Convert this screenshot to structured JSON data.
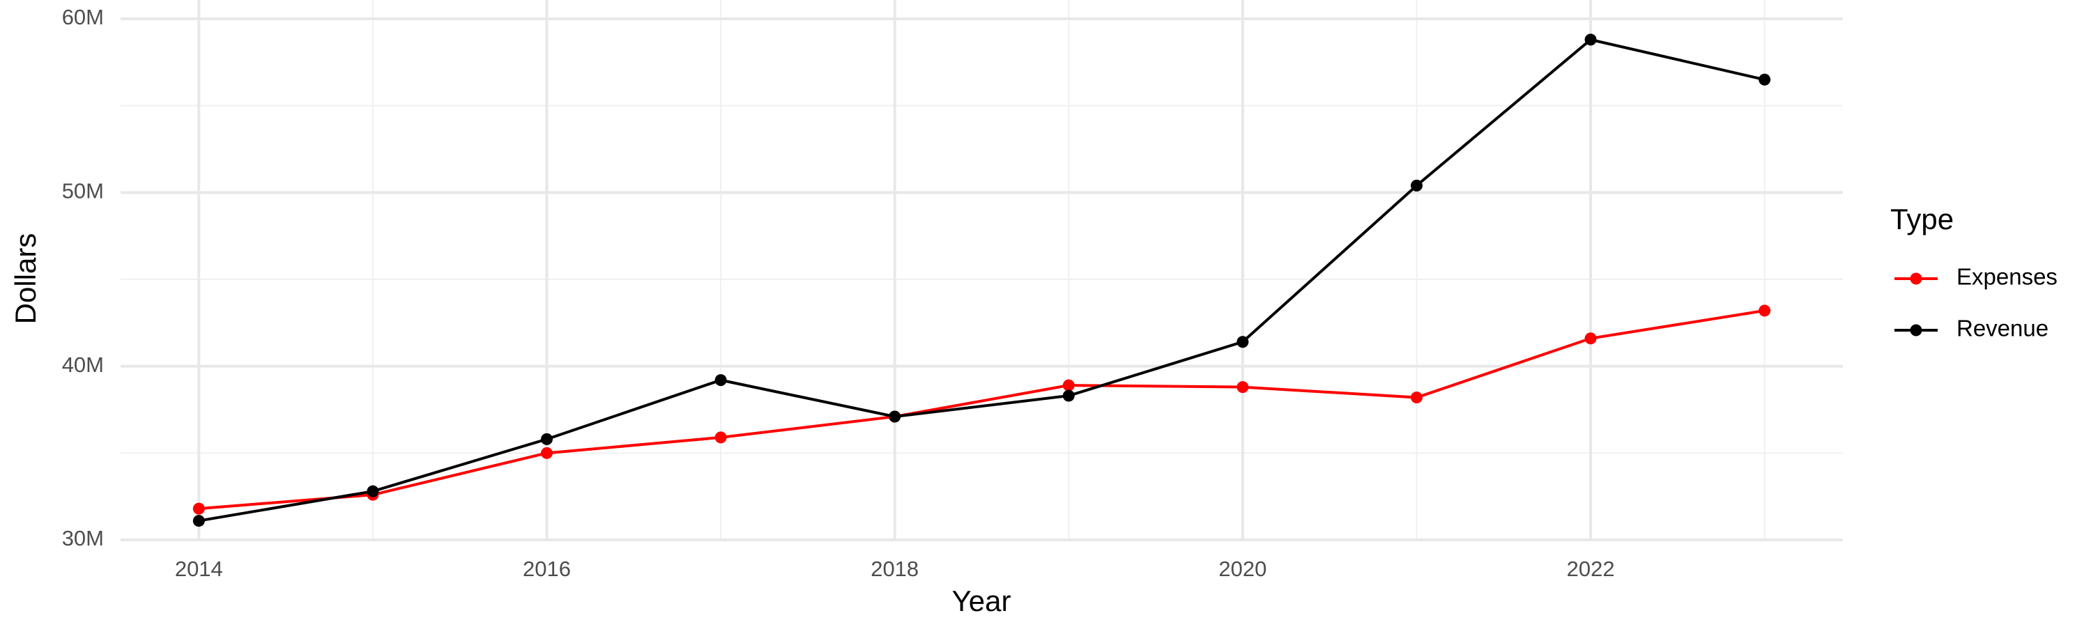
{
  "chart_data": {
    "type": "line",
    "x_label": "Year",
    "y_label": "Dollars",
    "legend_title": "Type",
    "x": [
      2014,
      2015,
      2016,
      2017,
      2018,
      2019,
      2020,
      2021,
      2022,
      2023
    ],
    "series": [
      {
        "name": "Expenses",
        "color": "#ff0000",
        "values": [
          31800000,
          32600000,
          35000000,
          35900000,
          37100000,
          38900000,
          38800000,
          38200000,
          41600000,
          43200000
        ]
      },
      {
        "name": "Revenue",
        "color": "#000000",
        "values": [
          31100000,
          32800000,
          35800000,
          39200000,
          37100000,
          38300000,
          41400000,
          50400000,
          58800000,
          56500000
        ]
      }
    ],
    "xlim": [
      2013.55,
      2023.45
    ],
    "xticks": [
      2014,
      2016,
      2018,
      2020,
      2022
    ],
    "xminorticks": [
      2015,
      2017,
      2019,
      2021,
      2023
    ],
    "ylim": [
      30000000,
      60000000
    ],
    "yticks": [
      {
        "value": 30000000,
        "label": "30M"
      },
      {
        "value": 40000000,
        "label": "40M"
      },
      {
        "value": 50000000,
        "label": "50M"
      },
      {
        "value": 60000000,
        "label": "60M"
      }
    ],
    "yminorticks": [
      35000000,
      45000000,
      55000000
    ],
    "grid": true,
    "legend_position": "right"
  }
}
